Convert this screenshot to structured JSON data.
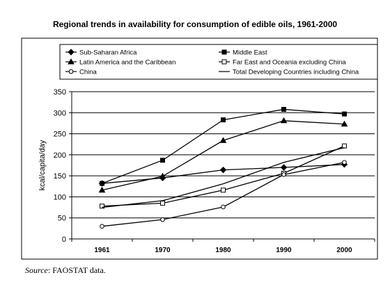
{
  "chart_data": {
    "type": "line",
    "title": "Regional trends in availability for consumption of edible oils, 1961-2000",
    "xlabel": "",
    "ylabel": "kcal/capita/day",
    "categories": [
      "1961",
      "1970",
      "1980",
      "1990",
      "2000"
    ],
    "ylim": [
      0,
      350
    ],
    "yticks": [
      "0",
      "50",
      "100",
      "150",
      "200",
      "250",
      "300",
      "350"
    ],
    "legend_position": "top",
    "series": [
      {
        "name": "Sub-Saharan Africa",
        "marker": "diamond",
        "values": [
          132,
          145,
          164,
          170,
          177
        ]
      },
      {
        "name": "Middle East",
        "marker": "square-filled",
        "values": [
          132,
          187,
          283,
          308,
          297
        ]
      },
      {
        "name": "Latin America and the Caribbean",
        "marker": "triangle",
        "values": [
          116,
          149,
          234,
          281,
          273
        ]
      },
      {
        "name": "Far East and Oceania excluding China",
        "marker": "square-open",
        "values": [
          78,
          85,
          116,
          156,
          221
        ]
      },
      {
        "name": "China",
        "marker": "circle-open",
        "values": [
          30,
          46,
          76,
          153,
          182
        ]
      },
      {
        "name": "Total Developing Countries including China",
        "marker": "none",
        "values": [
          75,
          91,
          131,
          182,
          217
        ]
      }
    ]
  },
  "source": {
    "label": "Source",
    "text": ": FAOSTAT data."
  }
}
